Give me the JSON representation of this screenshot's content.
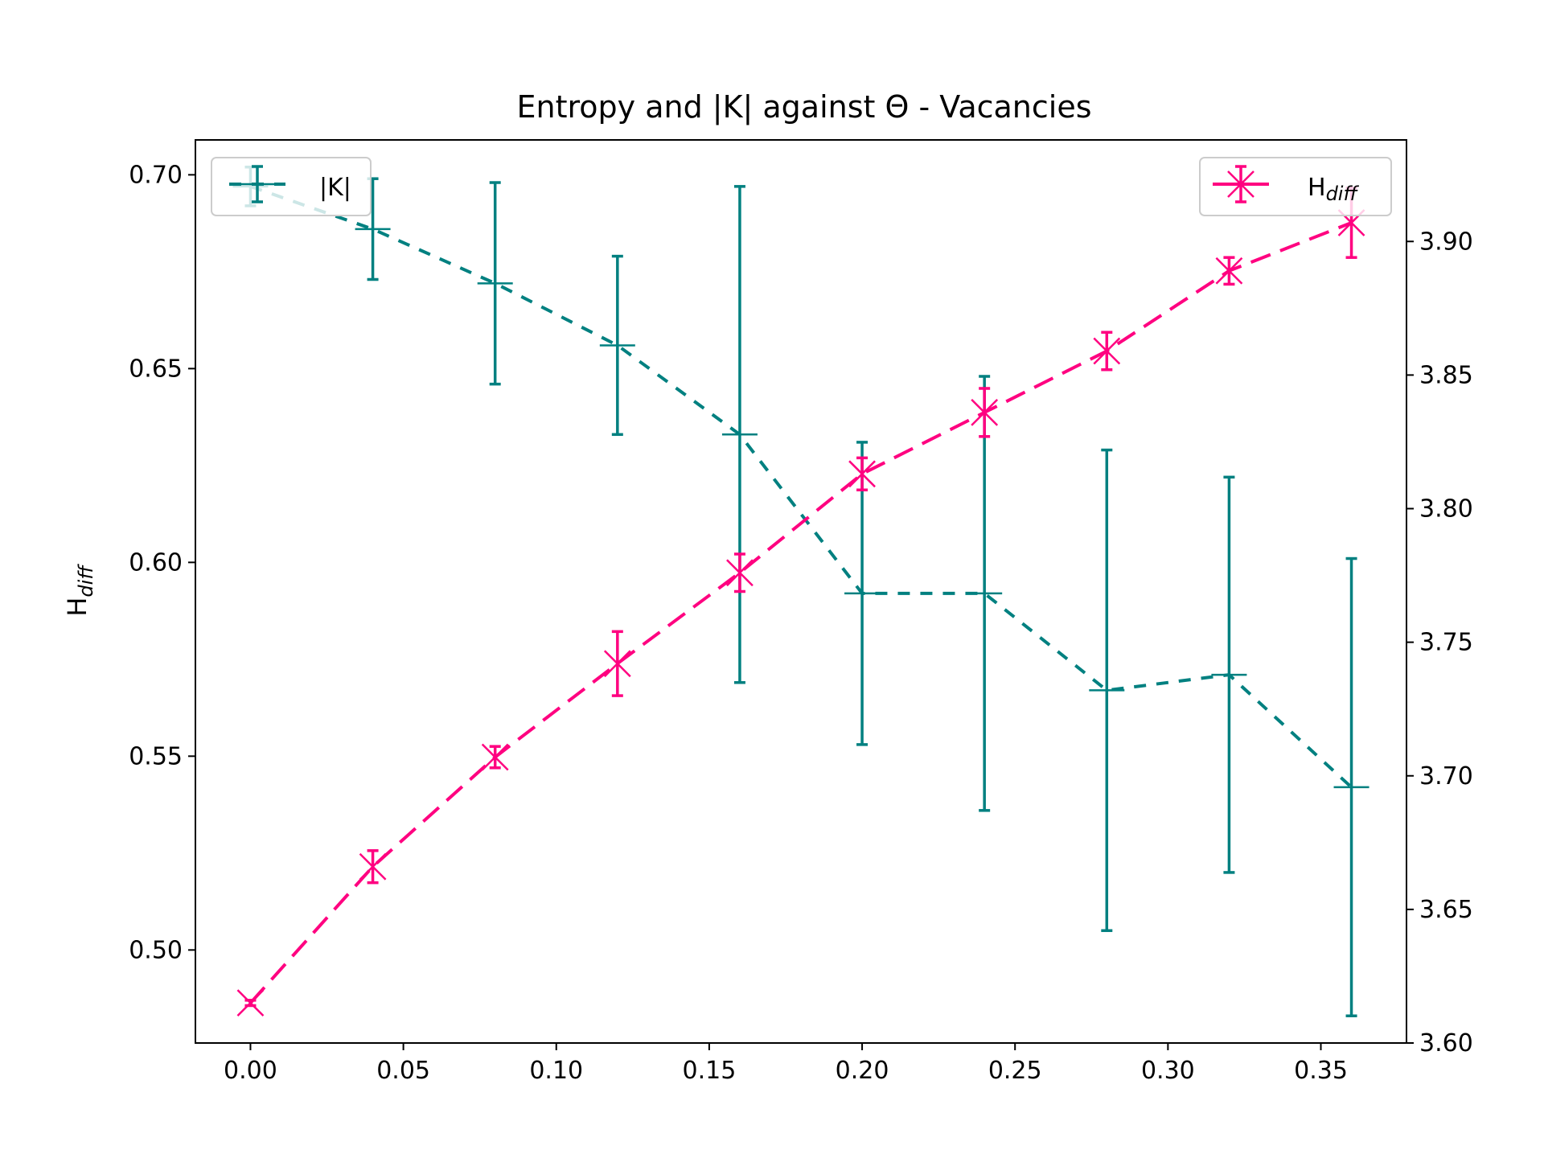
{
  "chart_data": {
    "type": "line",
    "title": "Entropy and |K| against Θ - Vacancies",
    "xlabel": "",
    "ylabel": "H",
    "ylabel_sub": "diff",
    "x": [
      0.0,
      0.04,
      0.08,
      0.12,
      0.16,
      0.2,
      0.24,
      0.28,
      0.32,
      0.36
    ],
    "xlim": [
      -0.018,
      0.378
    ],
    "x_ticks": [
      "0.00",
      "0.05",
      "0.10",
      "0.15",
      "0.20",
      "0.25",
      "0.30",
      "0.35"
    ],
    "y_left": {
      "lim": [
        0.476,
        0.709
      ],
      "ticks": [
        "0.50",
        "0.55",
        "0.60",
        "0.65",
        "0.70"
      ]
    },
    "y_right": {
      "lim": [
        3.6,
        3.938
      ],
      "ticks": [
        "3.60",
        "3.65",
        "3.70",
        "3.75",
        "3.80",
        "3.85",
        "3.90"
      ]
    },
    "series": [
      {
        "name": "|K|",
        "axis": "left",
        "color": "#008080",
        "marker": "plus",
        "line_style": "dashed",
        "values": [
          0.697,
          0.686,
          0.672,
          0.656,
          0.633,
          0.592,
          0.592,
          0.567,
          0.571,
          0.542
        ],
        "error": [
          0.005,
          0.013,
          0.026,
          0.023,
          0.064,
          0.039,
          0.056,
          0.062,
          0.051,
          0.059
        ]
      },
      {
        "name": "H",
        "name_sub": "diff",
        "axis": "right",
        "color": "#ff0080",
        "marker": "x",
        "line_style": "long-dashed",
        "values": [
          3.615,
          3.666,
          3.707,
          3.742,
          3.776,
          3.813,
          3.836,
          3.859,
          3.889,
          3.907
        ],
        "error": [
          0.001,
          0.006,
          0.004,
          0.012,
          0.007,
          0.006,
          0.009,
          0.007,
          0.005,
          0.013
        ]
      }
    ],
    "grid": false,
    "legends": [
      "upper-left",
      "upper-right"
    ]
  }
}
